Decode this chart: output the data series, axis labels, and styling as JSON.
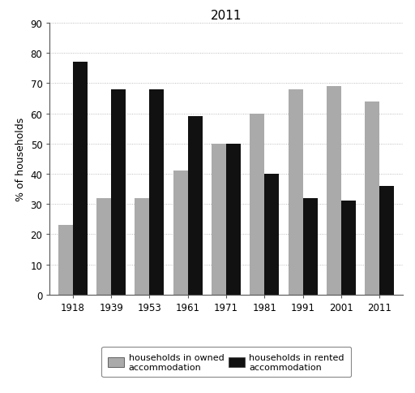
{
  "title": "2011",
  "ylabel": "% of households",
  "years": [
    "1918",
    "1939",
    "1953",
    "1961",
    "1971",
    "1981",
    "1991",
    "2001",
    "2011"
  ],
  "owned": [
    23,
    32,
    32,
    41,
    50,
    60,
    68,
    69,
    64
  ],
  "rented": [
    77,
    68,
    68,
    59,
    50,
    40,
    32,
    31,
    36
  ],
  "owned_color": "#aaaaaa",
  "rented_color": "#111111",
  "ylim": [
    0,
    90
  ],
  "yticks": [
    0,
    10,
    20,
    30,
    40,
    50,
    60,
    70,
    80,
    90
  ],
  "legend_owned": "households in owned\naccommodation",
  "legend_rented": "households in rented\naccommodation",
  "bar_width": 0.38,
  "background_color": "#ffffff",
  "title_fontsize": 11,
  "axis_fontsize": 9,
  "tick_fontsize": 8.5,
  "legend_fontsize": 8
}
